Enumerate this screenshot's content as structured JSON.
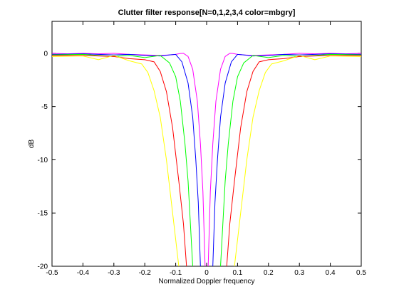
{
  "chart_data": {
    "type": "line",
    "title": "Clutter filter response[N=0,1,2,3,4 color=mbgry]",
    "xlabel": "Normalized Doppler frequency",
    "ylabel": "dB",
    "xlim": [
      -0.5,
      0.5
    ],
    "ylim": [
      -20,
      3
    ],
    "xticks": [
      -0.5,
      -0.4,
      -0.3,
      -0.2,
      -0.1,
      0,
      0.1,
      0.2,
      0.3,
      0.4,
      0.5
    ],
    "yticks": [
      -20,
      -15,
      -10,
      -5,
      0
    ],
    "grid": false,
    "series": [
      {
        "color": "#ff00ff",
        "x": [
          -0.5,
          -0.45,
          -0.4,
          -0.35,
          -0.3,
          -0.25,
          -0.2,
          -0.15,
          -0.12,
          -0.1,
          -0.085,
          -0.075,
          -0.06,
          -0.045,
          -0.03,
          -0.02,
          -0.012,
          -0.005,
          0,
          0.005,
          0.012,
          0.02,
          0.03,
          0.045,
          0.06,
          0.075,
          0.085,
          0.1,
          0.12,
          0.15,
          0.2,
          0.25,
          0.3,
          0.35,
          0.4,
          0.45,
          0.5
        ],
        "values": [
          0,
          -0.05,
          0,
          -0.05,
          0,
          -0.1,
          -0.15,
          -0.2,
          -0.15,
          -0.1,
          -0.02,
          0,
          -0.3,
          -1.5,
          -4.5,
          -8.5,
          -13,
          -20,
          null,
          -20,
          -13,
          -8.5,
          -4.5,
          -1.5,
          -0.3,
          0,
          -0.02,
          -0.1,
          -0.15,
          -0.2,
          -0.15,
          -0.1,
          0,
          -0.05,
          0,
          -0.05,
          0
        ]
      },
      {
        "color": "#0000ff",
        "x": [
          -0.5,
          -0.4,
          -0.3,
          -0.25,
          -0.2,
          -0.15,
          -0.12,
          -0.1,
          -0.08,
          -0.06,
          -0.045,
          -0.035,
          -0.027,
          -0.02,
          0,
          0.02,
          0.027,
          0.035,
          0.045,
          0.06,
          0.08,
          0.1,
          0.12,
          0.15,
          0.2,
          0.25,
          0.3,
          0.4,
          0.5
        ],
        "values": [
          -0.1,
          -0.05,
          -0.15,
          -0.1,
          -0.2,
          -0.25,
          -0.15,
          -0.1,
          -0.8,
          -2.8,
          -6,
          -10,
          -14,
          -20,
          null,
          -20,
          -14,
          -10,
          -6,
          -2.8,
          -0.8,
          -0.1,
          -0.15,
          -0.25,
          -0.2,
          -0.1,
          -0.15,
          -0.05,
          -0.1
        ]
      },
      {
        "color": "#00ff00",
        "x": [
          -0.5,
          -0.4,
          -0.3,
          -0.25,
          -0.2,
          -0.15,
          -0.12,
          -0.1,
          -0.085,
          -0.07,
          -0.06,
          -0.045,
          0,
          0.045,
          0.06,
          0.07,
          0.085,
          0.1,
          0.12,
          0.15,
          0.2,
          0.25,
          0.3,
          0.4,
          0.5
        ],
        "values": [
          -0.15,
          -0.1,
          -0.3,
          -0.2,
          -0.4,
          -0.2,
          -0.9,
          -2.2,
          -4.5,
          -8.5,
          -12,
          -20,
          null,
          -20,
          -12,
          -8.5,
          -4.5,
          -2.2,
          -0.9,
          -0.2,
          -0.4,
          -0.2,
          -0.3,
          -0.1,
          -0.15
        ]
      },
      {
        "color": "#ff0000",
        "x": [
          -0.5,
          -0.4,
          -0.3,
          -0.25,
          -0.2,
          -0.17,
          -0.15,
          -0.13,
          -0.11,
          -0.09,
          -0.075,
          -0.065,
          0,
          0.065,
          0.075,
          0.09,
          0.11,
          0.13,
          0.15,
          0.17,
          0.2,
          0.25,
          0.3,
          0.4,
          0.5
        ],
        "values": [
          -0.2,
          -0.2,
          -0.3,
          -0.5,
          -0.6,
          -0.8,
          -1.7,
          -3.6,
          -7,
          -12,
          -16,
          -20,
          null,
          -20,
          -16,
          -12,
          -7,
          -3.6,
          -1.7,
          -0.8,
          -0.6,
          -0.5,
          -0.3,
          -0.2,
          -0.2
        ]
      },
      {
        "color": "#ffff00",
        "x": [
          -0.5,
          -0.4,
          -0.35,
          -0.3,
          -0.25,
          -0.21,
          -0.19,
          -0.17,
          -0.15,
          -0.13,
          -0.11,
          -0.09,
          0,
          0.09,
          0.11,
          0.13,
          0.15,
          0.17,
          0.19,
          0.21,
          0.25,
          0.3,
          0.35,
          0.4,
          0.5
        ],
        "values": [
          -0.3,
          -0.25,
          -0.6,
          -0.2,
          -0.7,
          -1,
          -1.8,
          -3.5,
          -6,
          -10,
          -15,
          -20,
          null,
          -20,
          -15,
          -10,
          -6,
          -3.5,
          -1.8,
          -1,
          -0.7,
          -0.2,
          -0.6,
          -0.25,
          -0.3
        ]
      }
    ]
  }
}
